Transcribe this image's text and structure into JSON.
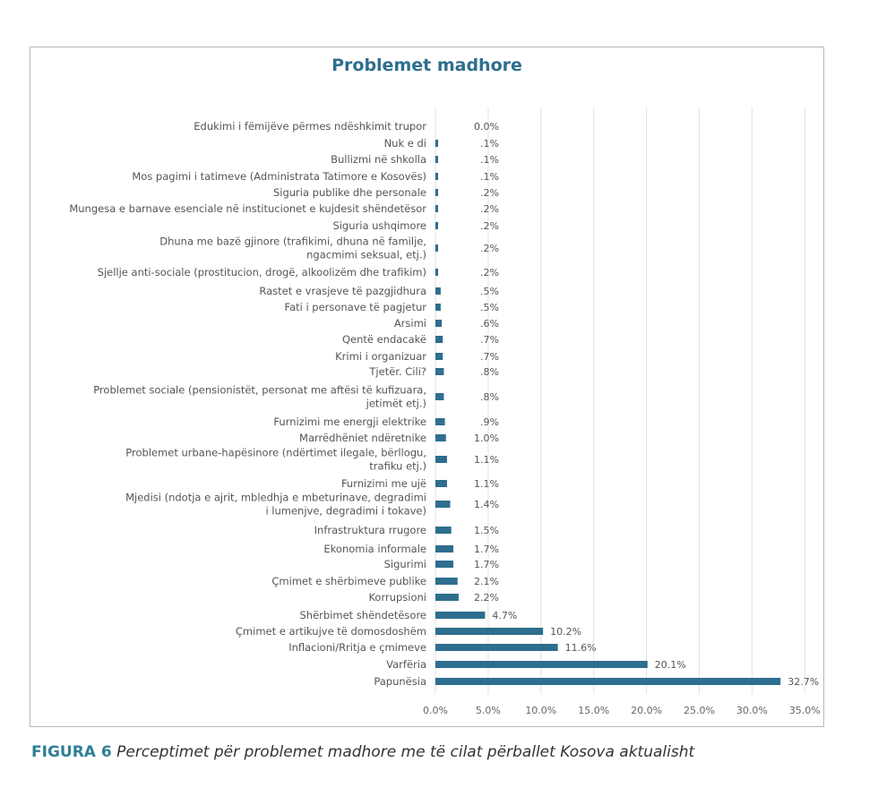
{
  "chart_data": {
    "type": "bar",
    "orientation": "horizontal",
    "title": "Problemet madhore",
    "categories": [
      "Edukimi i fëmijëve përmes ndëshkimit trupor",
      "Nuk e di",
      "Bullizmi në shkolla",
      "Mos pagimi i tatimeve (Administrata Tatimore e Kosovës)",
      "Siguria publike dhe personale",
      "Mungesa e barnave esenciale në institucionet e kujdesit shëndetësor",
      "Siguria ushqimore",
      "Dhuna me bazë gjinore (trafikimi, dhuna në familje,|ngacmimi seksual, etj.)",
      "Sjellje anti-sociale (prostitucion, drogë, alkoolizëm dhe trafikim)",
      "Rastet e vrasjeve të pazgjidhura",
      "Fati i personave të pagjetur",
      "Arsimi",
      "Qentë endacakë",
      "Krimi i organizuar",
      "Tjetër. Cili?",
      "Problemet sociale (pensionistët, personat me aftësi të kufizuara,|jetimët etj.)",
      "Furnizimi me energji elektrike",
      "Marrëdhëniet ndëretnike",
      "Problemet urbane-hapësinore (ndërtimet ilegale, bërllogu,|trafiku etj.)",
      "Furnizimi me ujë",
      "Mjedisi (ndotja e ajrit, mbledhja e mbeturinave, degradimi|i lumenjve, degradimi i tokave)",
      "Infrastruktura rrugore",
      "Ekonomia informale",
      "Sigurimi",
      "Çmimet e shërbimeve publike",
      "Korrupsioni",
      "Shërbimet shëndetësore",
      "Çmimet e artikujve të domosdoshëm",
      "Inflacioni/Rritja e çmimeve",
      "Varfëria",
      "Papunësia"
    ],
    "values": [
      0.0,
      0.1,
      0.1,
      0.1,
      0.2,
      0.2,
      0.2,
      0.2,
      0.2,
      0.5,
      0.5,
      0.6,
      0.7,
      0.7,
      0.8,
      0.8,
      0.9,
      1.0,
      1.1,
      1.1,
      1.4,
      1.5,
      1.7,
      1.7,
      2.1,
      2.2,
      4.7,
      10.2,
      11.6,
      20.1,
      32.7
    ],
    "value_labels": [
      "0.0%",
      ".1%",
      ".1%",
      ".1%",
      ".2%",
      ".2%",
      ".2%",
      ".2%",
      ".2%",
      ".5%",
      ".5%",
      ".6%",
      ".7%",
      ".7%",
      ".8%",
      ".8%",
      ".9%",
      "1.0%",
      "1.1%",
      "1.1%",
      "1.4%",
      "1.5%",
      "1.7%",
      "1.7%",
      "2.1%",
      "2.2%",
      "4.7%",
      "10.2%",
      "11.6%",
      "20.1%",
      "32.7%"
    ],
    "xlim": [
      0,
      35
    ],
    "x_ticks": [
      "0.0%",
      "5.0%",
      "10.0%",
      "15.0%",
      "20.0%",
      "25.0%",
      "30.0%",
      "35.0%"
    ],
    "grid": "vertical",
    "bar_color": "#2e6e8e",
    "xlabel": "",
    "ylabel": ""
  },
  "caption": {
    "figure": "FIGURA 6",
    "text": " Perceptimet për problemet madhore me të cilat përballet Kosova aktualisht"
  }
}
